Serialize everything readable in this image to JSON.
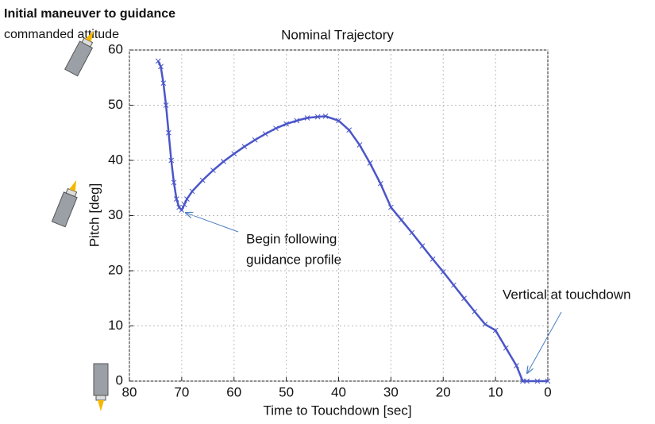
{
  "chart_data": {
    "type": "line",
    "title": "Nominal Trajectory",
    "x_label": "Time to Touchdown [sec]",
    "y_label": "Pitch [deg]",
    "xlim": [
      80,
      0
    ],
    "ylim": [
      0,
      60
    ],
    "xticks": [
      80,
      70,
      60,
      50,
      40,
      30,
      20,
      10,
      0
    ],
    "yticks": [
      0,
      10,
      20,
      30,
      40,
      50,
      60
    ],
    "grid": true,
    "marker": "x",
    "color": "#4b56c8",
    "x": [
      74.5,
      74,
      73.5,
      73,
      72.5,
      72,
      71.5,
      71,
      70.5,
      70,
      69.5,
      69,
      68,
      66,
      64,
      62,
      60,
      58,
      56,
      54,
      52,
      50,
      48,
      46,
      44,
      42.5,
      40,
      38,
      36,
      34,
      32,
      30,
      28,
      26,
      24,
      22,
      20,
      18,
      16,
      14,
      12,
      10,
      8,
      6,
      4.8,
      4,
      2,
      0
    ],
    "values": [
      58,
      57,
      54,
      50,
      45,
      40,
      36,
      33,
      31.5,
      31,
      32,
      33,
      34.4,
      36.4,
      38.2,
      39.8,
      41.2,
      42.5,
      43.7,
      44.8,
      45.8,
      46.6,
      47.2,
      47.7,
      47.9,
      48,
      47.2,
      45.5,
      42.8,
      39.5,
      35.8,
      31.5,
      29.2,
      26.9,
      24.5,
      22.1,
      19.8,
      17.4,
      15,
      12.6,
      10.3,
      9.2,
      6,
      2.8,
      0,
      0,
      0,
      0
    ],
    "annotations": [
      "Initial maneuver to guidance",
      "commanded attitude",
      "Begin following",
      "guidance profile",
      "Vertical at touchdown"
    ]
  }
}
